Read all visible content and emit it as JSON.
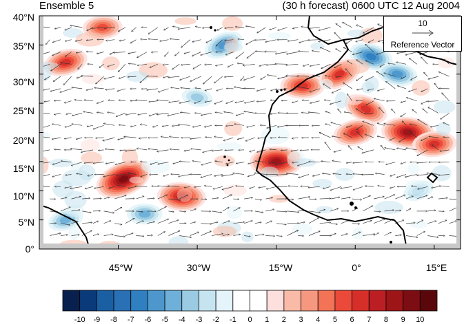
{
  "header": {
    "left_title": "Ensemble 5",
    "right_title": "(30 h forecast) 0600 UTC 12 Aug 2004"
  },
  "map": {
    "lat_labels": [
      "40°N",
      "35°N",
      "30°N",
      "25°N",
      "20°N",
      "15°N",
      "10°N",
      "5°N",
      "0°"
    ],
    "lon_labels": [
      "45°W",
      "30°W",
      "15°W",
      "0°",
      "15°E"
    ],
    "extent": {
      "lon_min": -60,
      "lon_max": 20,
      "lat_min": 0,
      "lat_max": 40
    },
    "missing_color": "#c8c8c8"
  },
  "reference_vector": {
    "magnitude": "10",
    "label": "Reference Vector"
  },
  "colorbar": {
    "labels": [
      "-10",
      "-9",
      "-8",
      "-7",
      "-6",
      "-5",
      "-4",
      "-3",
      "-2",
      "-1",
      "0",
      "1",
      "2",
      "3",
      "4",
      "5",
      "6",
      "7",
      "8",
      "9",
      "10"
    ],
    "colors": [
      "#08204d",
      "#0b3a7a",
      "#1b5fa3",
      "#2970b5",
      "#2f7fc1",
      "#4d97cc",
      "#6eb0d9",
      "#9bcbe3",
      "#c6e4ef",
      "#e4f4fa",
      "#ffffff",
      "#ffffff",
      "#fde0dd",
      "#f9bba8",
      "#f69780",
      "#f37356",
      "#eb4a3b",
      "#d62f2a",
      "#bc1f23",
      "#9e1518",
      "#7c0d12",
      "#5a070b"
    ]
  },
  "chart_data": {
    "type": "heatmap",
    "title": "Ensemble 5",
    "subtitle": "(30 h forecast) 0600 UTC 12 Aug 2004",
    "x": {
      "range": [
        -60,
        20
      ],
      "tick_labels": [
        "45°W",
        "30°W",
        "15°W",
        "0°",
        "15°E"
      ]
    },
    "y": {
      "range": [
        0,
        40
      ],
      "tick_labels": [
        "0°",
        "5°N",
        "10°N",
        "15°N",
        "20°N",
        "25°N",
        "30°N",
        "35°N",
        "40°N"
      ]
    },
    "color_levels": [
      -10,
      -9,
      -8,
      -7,
      -6,
      -5,
      -4,
      -3,
      -2,
      -1,
      0,
      1,
      2,
      3,
      4,
      5,
      6,
      7,
      8,
      9,
      10
    ],
    "anomaly_features": [
      {
        "lon": -15,
        "lat": 15,
        "value": 8
      },
      {
        "lon": -33,
        "lat": 9,
        "value": 7
      },
      {
        "lon": -44,
        "lat": 12,
        "value": 9
      },
      {
        "lon": -55,
        "lat": 32,
        "value": 6
      },
      {
        "lon": -48,
        "lat": 38,
        "value": 5
      },
      {
        "lon": -10,
        "lat": 28,
        "value": 6
      },
      {
        "lon": -3,
        "lat": 30,
        "value": 6
      },
      {
        "lon": 2,
        "lat": 24,
        "value": 6
      },
      {
        "lon": 10,
        "lat": 20,
        "value": 8
      },
      {
        "lon": 15,
        "lat": 18,
        "value": 6
      },
      {
        "lon": 0,
        "lat": 20,
        "value": 6
      },
      {
        "lon": 3,
        "lat": 33,
        "value": -6
      },
      {
        "lon": 8,
        "lat": 30,
        "value": -5
      },
      {
        "lon": -25,
        "lat": 35,
        "value": -5
      },
      {
        "lon": -40,
        "lat": 6,
        "value": -4
      },
      {
        "lon": -55,
        "lat": 5,
        "value": -4
      },
      {
        "lon": -30,
        "lat": 26,
        "value": -3
      },
      {
        "lon": 12,
        "lat": 10,
        "value": -3
      }
    ],
    "reference_vector": 10
  }
}
